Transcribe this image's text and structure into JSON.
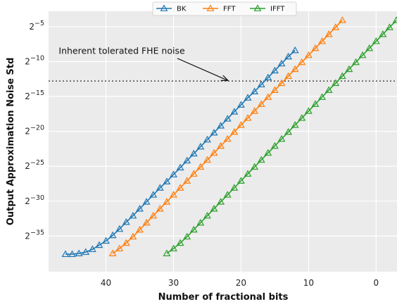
{
  "chart_data": {
    "type": "line",
    "title": "",
    "xlabel": "Number of fractional bits",
    "ylabel": "Output Approximation Noise Std",
    "x_inverted": true,
    "xlim": [
      48.5,
      -3.2
    ],
    "ylim": [
      -40.1,
      -2.8
    ],
    "y_scale": "log2",
    "xticks": [
      40,
      30,
      20,
      10,
      0
    ],
    "yticks": [
      -5,
      -10,
      -15,
      -20,
      -25,
      -30,
      -35
    ],
    "ytick_labels": [
      "2−5",
      "2−10",
      "2−15",
      "2−20",
      "2−25",
      "2−30",
      "2−35"
    ],
    "grid": true,
    "legend": {
      "position": "top-center"
    },
    "marker": "triangle-open",
    "series": [
      {
        "name": "BK",
        "color": "#1f77b4",
        "x": [
          46,
          45,
          44,
          43,
          42,
          41,
          40,
          39,
          38,
          37,
          36,
          35,
          34,
          33,
          32,
          31,
          30,
          29,
          28,
          27,
          26,
          25,
          24,
          23,
          22,
          21,
          20,
          19,
          18,
          17,
          16,
          15,
          14,
          13,
          12
        ],
        "y": [
          -37.6,
          -37.6,
          -37.5,
          -37.3,
          -36.9,
          -36.3,
          -35.7,
          -34.9,
          -34.0,
          -33.0,
          -32.1,
          -31.1,
          -30.1,
          -29.1,
          -28.1,
          -27.2,
          -26.2,
          -25.2,
          -24.2,
          -23.2,
          -22.2,
          -21.2,
          -20.2,
          -19.2,
          -18.2,
          -17.2,
          -16.2,
          -15.2,
          -14.3,
          -13.3,
          -12.3,
          -11.3,
          -10.3,
          -9.3,
          -8.4
        ]
      },
      {
        "name": "FFT",
        "color": "#ff7f0e",
        "x": [
          39,
          38,
          37,
          36,
          35,
          34,
          33,
          32,
          31,
          30,
          29,
          28,
          27,
          26,
          25,
          24,
          23,
          22,
          21,
          20,
          19,
          18,
          17,
          16,
          15,
          14,
          13,
          12,
          11,
          10,
          9,
          8,
          7,
          6,
          5
        ],
        "y": [
          -37.5,
          -36.8,
          -36.0,
          -35.1,
          -34.1,
          -33.1,
          -32.1,
          -31.1,
          -30.1,
          -29.1,
          -28.1,
          -27.1,
          -26.1,
          -25.1,
          -24.1,
          -23.1,
          -22.1,
          -21.1,
          -20.1,
          -19.1,
          -18.1,
          -17.1,
          -16.1,
          -15.1,
          -14.1,
          -13.1,
          -12.1,
          -11.1,
          -10.1,
          -9.1,
          -8.1,
          -7.1,
          -6.1,
          -5.1,
          -4.1
        ]
      },
      {
        "name": "IFFT",
        "color": "#2ca02c",
        "x": [
          31,
          30,
          29,
          28,
          27,
          26,
          25,
          24,
          23,
          22,
          21,
          20,
          19,
          18,
          17,
          16,
          15,
          14,
          13,
          12,
          11,
          10,
          9,
          8,
          7,
          6,
          5,
          4,
          3,
          2,
          1,
          0,
          -1,
          -2,
          -3
        ],
        "y": [
          -37.5,
          -36.8,
          -36.0,
          -35.1,
          -34.1,
          -33.1,
          -32.1,
          -31.1,
          -30.1,
          -29.1,
          -28.1,
          -27.1,
          -26.1,
          -25.1,
          -24.1,
          -23.1,
          -22.1,
          -21.1,
          -20.1,
          -19.1,
          -18.1,
          -17.1,
          -16.1,
          -15.1,
          -14.1,
          -13.1,
          -12.1,
          -11.1,
          -10.1,
          -9.1,
          -8.1,
          -7.1,
          -6.1,
          -5.1,
          -4.1
        ]
      }
    ],
    "hline": {
      "y": -12.8,
      "style": "dotted",
      "color": "#555555"
    },
    "annotation": {
      "text": "Inherent tolerated FHE noise",
      "text_x": 47,
      "text_y": -8.9,
      "arrow_to_x": 22,
      "arrow_to_y": -12.8
    }
  }
}
